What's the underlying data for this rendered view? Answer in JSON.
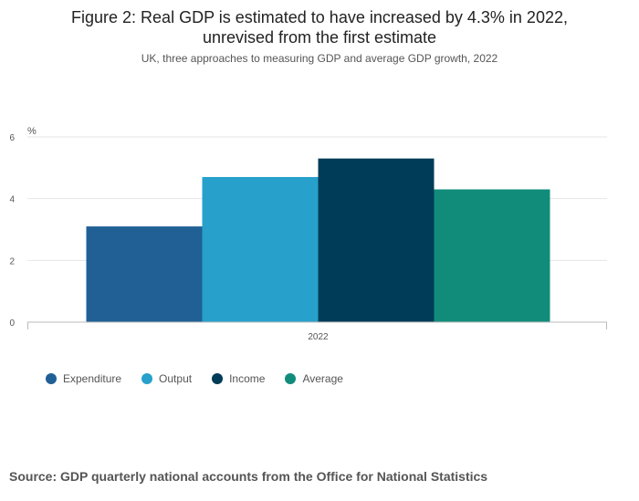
{
  "header": {
    "title_line1": "Figure 2: Real GDP is estimated to have increased by 4.3% in 2022,",
    "title_line2": "unrevised from the first estimate",
    "subtitle": "UK, three approaches to measuring GDP and average GDP growth, 2022"
  },
  "chart_data": {
    "type": "bar",
    "title": "Figure 2: Real GDP is estimated to have increased by 4.3% in 2022, unrevised from the first estimate",
    "subtitle": "UK, three approaches to measuring GDP and average GDP growth, 2022",
    "categories": [
      "2022"
    ],
    "series": [
      {
        "name": "Expenditure",
        "values": [
          3.1
        ],
        "color": "#206095"
      },
      {
        "name": "Output",
        "values": [
          4.7
        ],
        "color": "#27a0cc"
      },
      {
        "name": "Income",
        "values": [
          5.3
        ],
        "color": "#003c57"
      },
      {
        "name": "Average",
        "values": [
          4.3
        ],
        "color": "#118c7b"
      }
    ],
    "ylabel": "%",
    "xlabel": "",
    "ylim": [
      0,
      6
    ],
    "yticks": [
      0,
      2,
      4,
      6
    ],
    "grid": true,
    "legend": "bottom-left"
  },
  "legend": {
    "items": [
      {
        "label": "Expenditure",
        "color": "#206095"
      },
      {
        "label": "Output",
        "color": "#27a0cc"
      },
      {
        "label": "Income",
        "color": "#003c57"
      },
      {
        "label": "Average",
        "color": "#118c7b"
      }
    ]
  },
  "footer": {
    "source": "Source: GDP quarterly national accounts from the Office for National Statistics"
  }
}
